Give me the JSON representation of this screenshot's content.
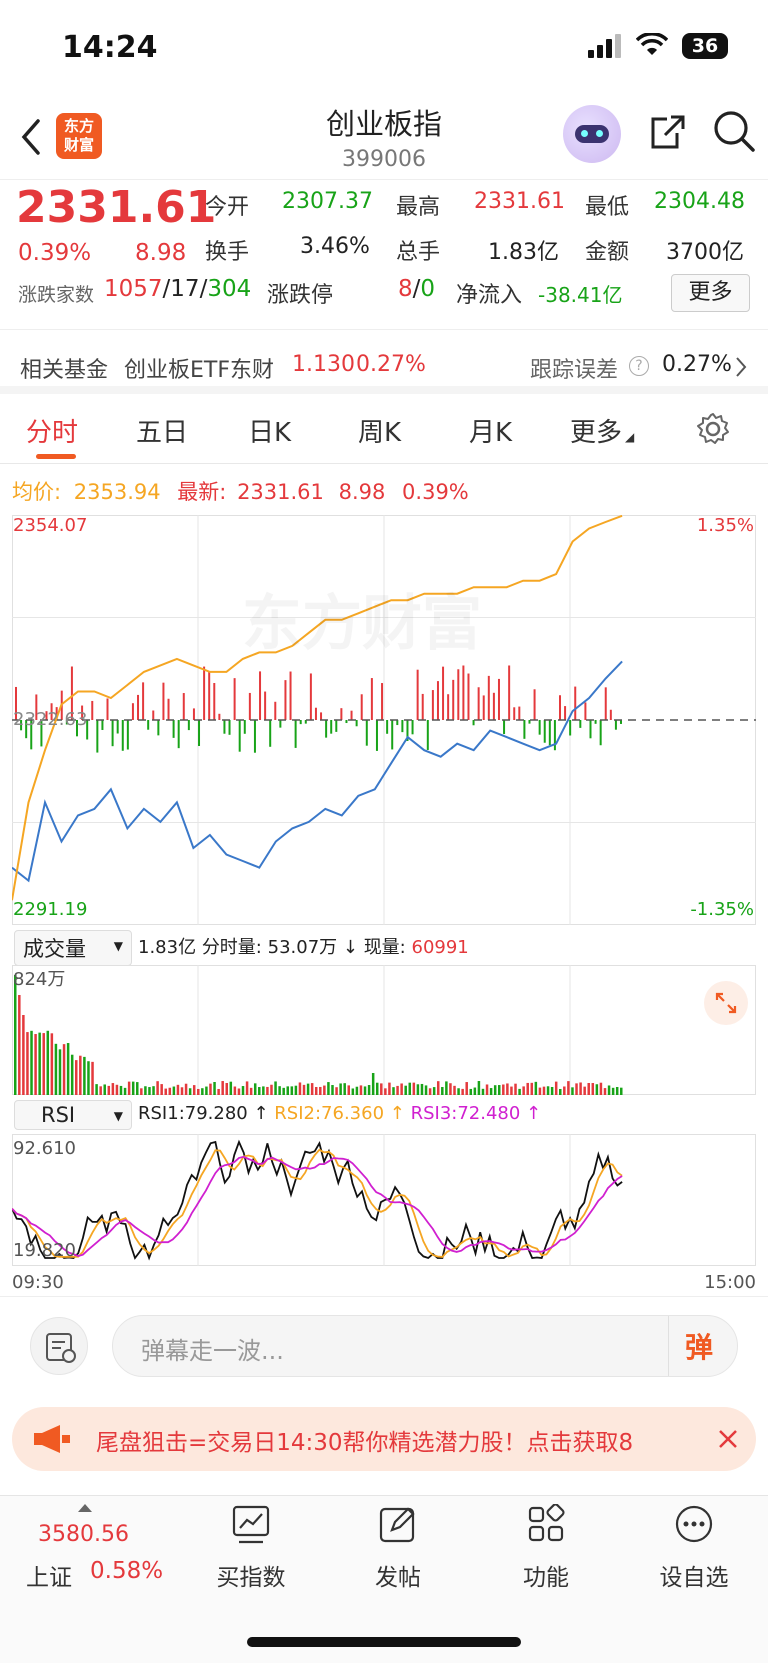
{
  "status": {
    "time": "14:24",
    "battery": "36"
  },
  "header": {
    "logo_line1": "东方",
    "logo_line2": "财富",
    "title": "创业板指",
    "code": "399006"
  },
  "quote": {
    "price": "2331.61",
    "change_pct": "0.39%",
    "change": "8.98",
    "open_label": "今开",
    "open": "2307.37",
    "high_label": "最高",
    "high": "2331.61",
    "low_label": "最低",
    "low": "2304.48",
    "turnover_label": "换手",
    "turnover": "3.46%",
    "volume_label": "总手",
    "volume": "1.83亿",
    "amount_label": "金额",
    "amount": "3700亿",
    "breadth_label": "涨跌家数",
    "up": "1057",
    "flat": "17",
    "down": "304",
    "limit_label": "涨跌停",
    "limit_up": "8",
    "limit_down": "0",
    "inflow_label": "净流入",
    "inflow": "-38.41亿",
    "more_button": "更多"
  },
  "fund": {
    "label": "相关基金",
    "name": "创业板ETF东财",
    "price": "1.130",
    "pct": "0.27%",
    "tracking_label": "跟踪误差",
    "tracking": "0.27%"
  },
  "tabs": [
    "分时",
    "五日",
    "日K",
    "周K",
    "月K",
    "更多"
  ],
  "chart_info": {
    "avg_label": "均价:",
    "avg": "2353.94",
    "latest_label": "最新:",
    "latest": "2331.61",
    "latest_chg": "8.98",
    "latest_pct": "0.39%",
    "y_top": "2354.07",
    "y_mid": "2322.63",
    "y_bottom": "2291.19",
    "pct_top": "1.35%",
    "pct_bottom": "-1.35%",
    "watermark": "东方财富"
  },
  "volume_panel": {
    "selector": "成交量",
    "total": "1.83亿",
    "minute_label": "分时量:",
    "minute": "53.07万",
    "current_label": "现量:",
    "current": "60991",
    "y_max": "824万"
  },
  "rsi_panel": {
    "selector": "RSI",
    "rsi1": "RSI1:79.280",
    "rsi2": "RSI2:76.360",
    "rsi3": "RSI3:72.480",
    "y_max": "92.610",
    "y_min": "19.820",
    "t_start": "09:30",
    "t_end": "15:00"
  },
  "input": {
    "placeholder": "弹幕走一波...",
    "danmu": "弹"
  },
  "banner": {
    "text": "尾盘狙击=交易日14:30帮你精选潜力股！点击获取8"
  },
  "bottom_nav": {
    "index_value": "3580.56",
    "index_name": "上证",
    "index_pct": "0.58%",
    "items": [
      "买指数",
      "发帖",
      "功能",
      "设自选"
    ]
  },
  "colors": {
    "up": "#e4393c",
    "down": "#18a318",
    "price_line": "#3a78c9",
    "avg_line": "#f5a623",
    "rsi3": "#d020d0",
    "accent": "#f05a22"
  },
  "chart_data": {
    "type": "line",
    "x_range": [
      "09:30",
      "15:00"
    ],
    "ylim": [
      2291.19,
      2354.07
    ],
    "series": [
      {
        "name": "最新",
        "values": [
          2300,
          2298,
          2310,
          2304,
          2308,
          2309,
          2312,
          2306,
          2309,
          2307,
          2310,
          2303,
          2305,
          2302,
          2301,
          2300,
          2304,
          2306,
          2307,
          2309,
          2308,
          2311,
          2312,
          2316,
          2320,
          2318,
          2317,
          2319,
          2318,
          2321,
          2320,
          2319,
          2318,
          2319,
          2324,
          2326,
          2329,
          2331.61
        ]
      },
      {
        "name": "均价",
        "values": [
          2295,
          2310,
          2318,
          2325,
          2327,
          2327,
          2326,
          2328,
          2330,
          2331,
          2332,
          2331,
          2330,
          2330,
          2332,
          2333,
          2333,
          2334,
          2336,
          2338,
          2338,
          2339,
          2340,
          2341,
          2341,
          2342,
          2342,
          2342,
          2343,
          2343,
          2343,
          2344,
          2344,
          2345,
          2350,
          2352,
          2353,
          2353.94
        ]
      }
    ]
  }
}
